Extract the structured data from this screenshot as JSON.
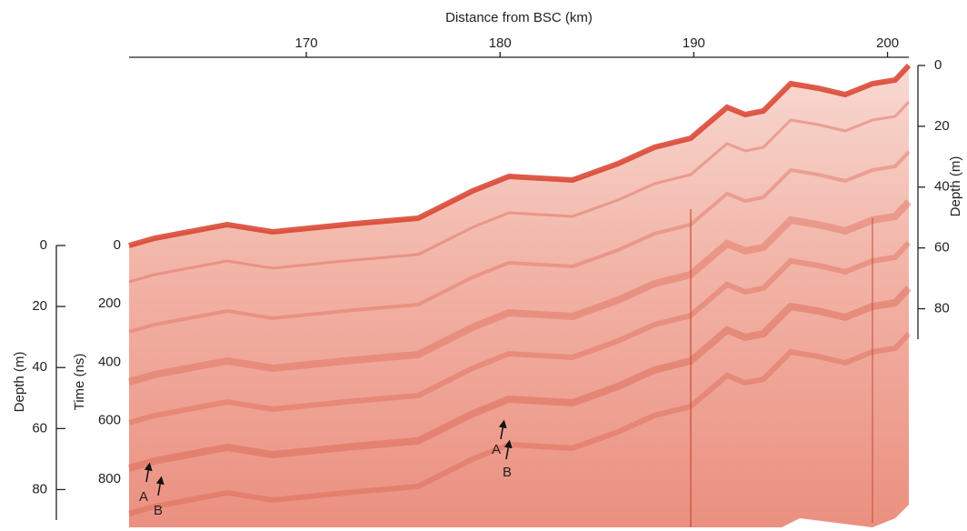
{
  "chart_data": {
    "type": "radargram",
    "x_label": "Distance from BSC (km)",
    "xlim": [
      160.85,
      201.1
    ],
    "xticks": [
      170,
      180,
      190,
      200
    ],
    "y_label": "Depth (m)",
    "ylim": [
      0,
      90
    ],
    "yticks": [
      0,
      20,
      40,
      60,
      80
    ],
    "time_label": "Time (ns)",
    "timelim": [
      0,
      940
    ],
    "timeticks": [
      0,
      200,
      400,
      600,
      800
    ],
    "y2_label": "Depth (m)",
    "y2lim": [
      0,
      90
    ],
    "y2ticks": [
      0,
      20,
      40,
      60,
      80
    ],
    "annotations": [
      "A",
      "B",
      "A",
      "B"
    ]
  }
}
